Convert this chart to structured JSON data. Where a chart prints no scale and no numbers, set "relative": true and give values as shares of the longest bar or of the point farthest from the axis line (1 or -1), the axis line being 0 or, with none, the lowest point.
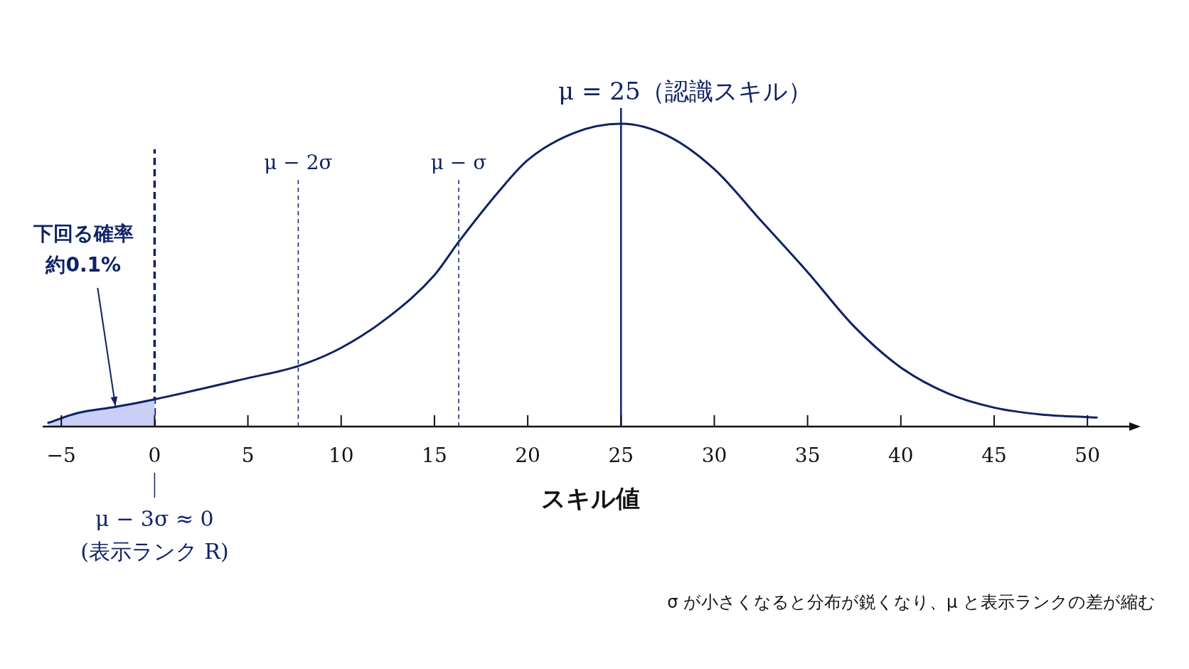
{
  "chart_data": {
    "type": "line",
    "relative": true,
    "xlabel": "スキル値",
    "x": [
      -5.7,
      -4.1,
      -2.1,
      0,
      5,
      7.7,
      10,
      12.5,
      15,
      16.3,
      18.5,
      20,
      22.5,
      25,
      27.5,
      30,
      32.5,
      35,
      37.5,
      40,
      42.5,
      45,
      47.5,
      50.5
    ],
    "series": [
      {
        "type": "area",
        "color": "#c9cff5",
        "x": [
          -5.7,
          -4.1,
          -2.1,
          0
        ],
        "values": [
          0.0125,
          0.045,
          0.065,
          0.09
        ]
      },
      {
        "type": "line",
        "color": "#0f2266",
        "values": [
          0.0125,
          0.045,
          0.065,
          0.09,
          0.16,
          0.2,
          0.26,
          0.36,
          0.5,
          0.61,
          0.78,
          0.88,
          0.97,
          1,
          0.96,
          0.85,
          0.68,
          0.51,
          0.33,
          0.195,
          0.11,
          0.0625,
          0.04,
          0.03
        ]
      }
    ],
    "xlim": [
      -6,
      52.7
    ],
    "xticks": [
      {
        "value": -5,
        "label": "−5"
      },
      0,
      5,
      10,
      15,
      20,
      25,
      30,
      35,
      40,
      45,
      50
    ],
    "ref_lines": [
      {
        "axis": "x",
        "value": 0,
        "label": "μ − 3σ ≈ 0\n(表示ランク R)",
        "line_style": "dashed",
        "color": "#0f2266"
      },
      {
        "axis": "x",
        "value": 7.7,
        "label": "μ − 2σ",
        "line_style": "dashed",
        "color": "#0f2266"
      },
      {
        "axis": "x",
        "value": 16.3,
        "label": "μ − σ",
        "line_style": "dashed",
        "color": "#0f2266"
      },
      {
        "axis": "x",
        "value": 25,
        "label": "μ = 25（認識スキル）",
        "line_style": "solid",
        "color": "#0f2266"
      }
    ],
    "annotations": [
      {
        "text": "下回る確率約0.1%",
        "x": -2.1,
        "y": 0.065
      },
      "σ が小さくなると分布が鋭くなり、μ と表示ランクの差が縮む"
    ]
  }
}
